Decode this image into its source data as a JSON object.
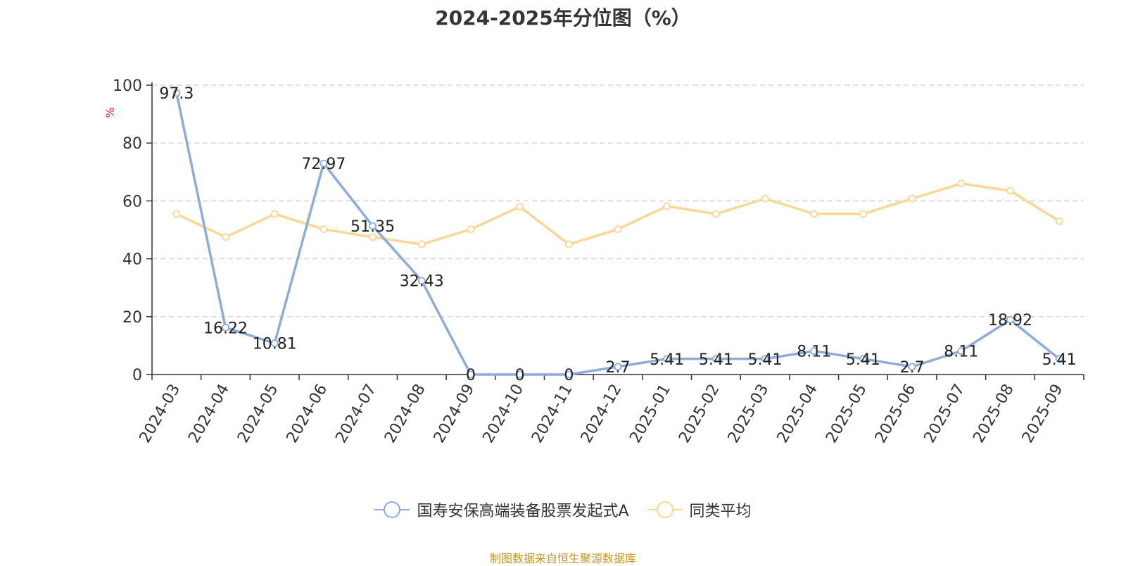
{
  "title": "2024-2025年分位图（%）",
  "source_note": "制图数据来自恒生聚源数据库",
  "colors": {
    "series1": "#8eacd9",
    "series2": "#f9d794",
    "ylabel": "#e02020",
    "source": "#c8961e",
    "grid": "#cccccc",
    "axis": "#333333"
  },
  "chart_data": {
    "type": "line",
    "title": "2024-2025年分位图（%）",
    "ylabel": "%",
    "xlabel": "",
    "ylim": [
      0,
      100
    ],
    "yticks": [
      0,
      20,
      40,
      60,
      80,
      100
    ],
    "grid": true,
    "legend_position": "bottom",
    "categories": [
      "2024-03",
      "2024-04",
      "2024-05",
      "2024-06",
      "2024-07",
      "2024-08",
      "2024-09",
      "2024-10",
      "2024-11",
      "2024-12",
      "2025-01",
      "2025-02",
      "2025-03",
      "2025-04",
      "2025-05",
      "2025-06",
      "2025-07",
      "2025-08",
      "2025-09"
    ],
    "series": [
      {
        "name": "国寿安保高端装备股票发起式A",
        "values": [
          97.3,
          16.22,
          10.81,
          72.97,
          51.35,
          32.43,
          0,
          0,
          0,
          2.7,
          5.41,
          5.41,
          5.41,
          8.11,
          5.41,
          2.7,
          8.11,
          18.92,
          5.41
        ],
        "labels": [
          "97.3",
          "16.22",
          "10.81",
          "72.97",
          "51.35",
          "32.43",
          "0",
          "0",
          "0",
          "2.7",
          "5.41",
          "5.41",
          "5.41",
          "8.11",
          "5.41",
          "2.7",
          "8.11",
          "18.92",
          "5.41"
        ]
      },
      {
        "name": "同类平均",
        "values": [
          55.5,
          47.5,
          55.5,
          50.2,
          47.5,
          45.0,
          50.2,
          58.0,
          45.0,
          50.2,
          58.2,
          55.5,
          60.8,
          55.5,
          55.5,
          60.8,
          66.0,
          63.5,
          53.0
        ]
      }
    ]
  }
}
